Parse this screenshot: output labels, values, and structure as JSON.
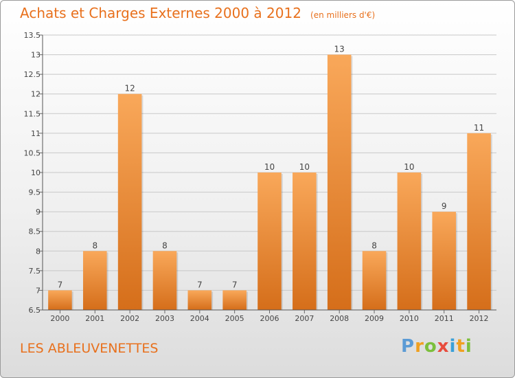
{
  "header": {
    "title": "Achats et Charges Externes 2000 à 2012",
    "unit": "(en milliers d'€)"
  },
  "footer": {
    "commune": "LES ABLEUVENETTES",
    "logo_letters": [
      "P",
      "r",
      "o",
      "x",
      "i",
      "t",
      "i"
    ],
    "logo_colors": [
      "#5b9bd5",
      "#f0a020",
      "#7cbf3c",
      "#e84c3d",
      "#3aa0d8",
      "#f0a020",
      "#7cbf3c"
    ]
  },
  "colors": {
    "bar_light": "#f9a85a",
    "bar_dark": "#d56e1a",
    "title": "#e8701c"
  },
  "chart_data": {
    "type": "bar",
    "title": "Achats et Charges Externes 2000 à 2012",
    "subtitle": "(en milliers d'€)",
    "categories": [
      "2000",
      "2001",
      "2002",
      "2003",
      "2004",
      "2005",
      "2006",
      "2007",
      "2008",
      "2009",
      "2010",
      "2011",
      "2012"
    ],
    "values": [
      7,
      8,
      12,
      8,
      7,
      7,
      10,
      10,
      13,
      8,
      10,
      9,
      11
    ],
    "ylim": [
      6.5,
      13.5
    ],
    "yticks": [
      "6.5",
      "7",
      "7.5",
      "8",
      "8.5",
      "9",
      "9.5",
      "10",
      "10.5",
      "11",
      "11.5",
      "12",
      "12.5",
      "13",
      "13.5"
    ],
    "grid": true,
    "xlabel": "",
    "ylabel": ""
  }
}
